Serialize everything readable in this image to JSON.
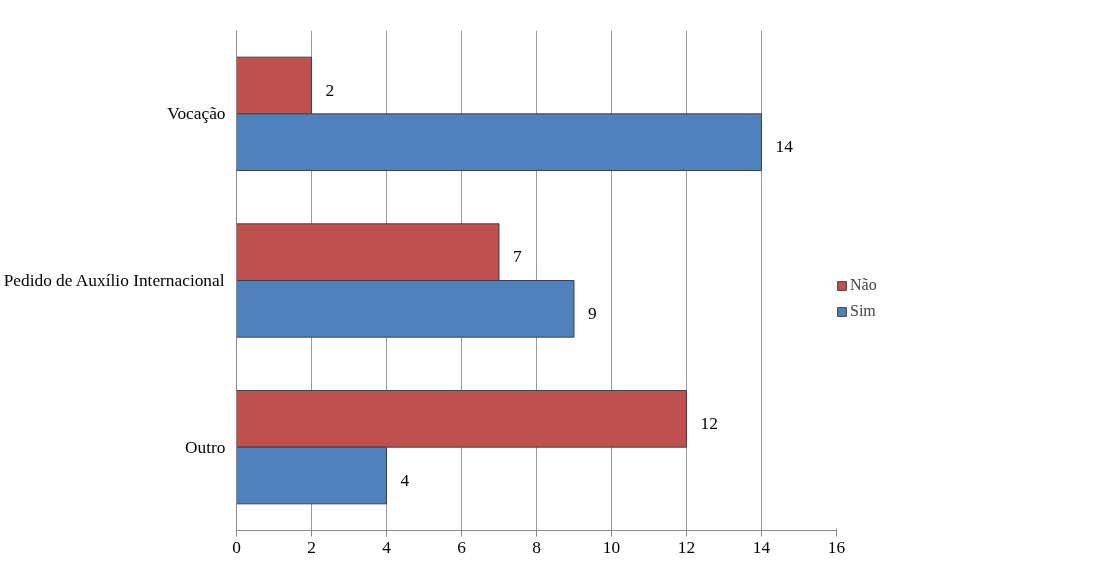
{
  "chart_data": {
    "type": "bar",
    "orientation": "horizontal",
    "categories": [
      "Vocação",
      "Pedido de Auxílio Internacional",
      "Outro"
    ],
    "series": [
      {
        "name": "Não",
        "color": "#c0504d",
        "values": [
          2,
          7,
          12
        ]
      },
      {
        "name": "Sim",
        "color": "#4f81bd",
        "values": [
          14,
          9,
          4
        ]
      }
    ],
    "xlim": [
      0,
      16
    ],
    "xticks": [
      0,
      2,
      4,
      6,
      8,
      10,
      12,
      14,
      16
    ],
    "grid": "x",
    "legend": "right",
    "data_labels": true
  }
}
